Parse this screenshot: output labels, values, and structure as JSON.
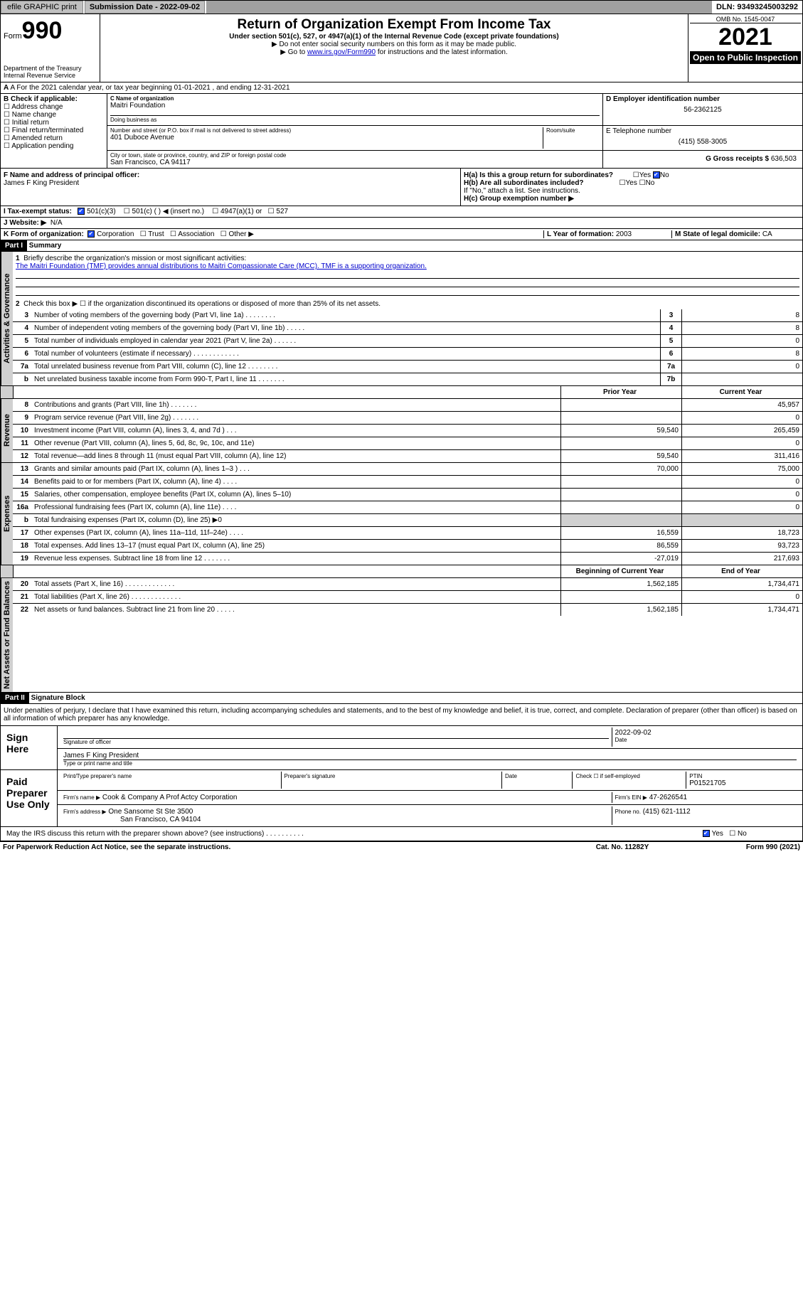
{
  "topbar": {
    "efile": "efile GRAPHIC print",
    "subdate_label": "Submission Date - 2022-09-02",
    "dln": "DLN: 93493245003292"
  },
  "header": {
    "form_label": "Form",
    "form_num": "990",
    "dept": "Department of the Treasury\nInternal Revenue Service",
    "title": "Return of Organization Exempt From Income Tax",
    "sub1": "Under section 501(c), 527, or 4947(a)(1) of the Internal Revenue Code (except private foundations)",
    "sub2a": "▶ Do not enter social security numbers on this form as it may be made public.",
    "sub2b_pre": "▶ Go to ",
    "sub2b_link": "www.irs.gov/Form990",
    "sub2b_post": " for instructions and the latest information.",
    "omb": "OMB No. 1545-0047",
    "year": "2021",
    "inspect": "Open to Public Inspection"
  },
  "row_a": "A For the 2021 calendar year, or tax year beginning 01-01-2021     , and ending 12-31-2021",
  "b": {
    "label": "B Check if applicable:",
    "items": [
      "Address change",
      "Name change",
      "Initial return",
      "Final return/terminated",
      "Amended return",
      "Application pending"
    ]
  },
  "c": {
    "name_label": "C Name of organization",
    "name": "Maitri Foundation",
    "dba_label": "Doing business as",
    "dba": "",
    "addr_label": "Number and street (or P.O. box if mail is not delivered to street address)",
    "room_label": "Room/suite",
    "addr": "401 Duboce Avenue",
    "city_label": "City or town, state or province, country, and ZIP or foreign postal code",
    "city": "San Francisco, CA  94117"
  },
  "d": {
    "label": "D Employer identification number",
    "val": "56-2362125"
  },
  "e": {
    "label": "E Telephone number",
    "val": "(415) 558-3005"
  },
  "g": {
    "label": "G Gross receipts $",
    "val": "636,503"
  },
  "f": {
    "label": "F Name and address of principal officer:",
    "val": "James F King President"
  },
  "h": {
    "a": "H(a)  Is this a group return for subordinates?",
    "b": "H(b)  Are all subordinates included?",
    "b_note": "If \"No,\" attach a list. See instructions.",
    "c": "H(c)  Group exemption number ▶"
  },
  "i": {
    "label": "I   Tax-exempt status:",
    "opts": [
      "501(c)(3)",
      "501(c) (  ) ◀ (insert no.)",
      "4947(a)(1) or",
      "527"
    ]
  },
  "j": {
    "label": "J   Website: ▶",
    "val": "N/A"
  },
  "k": {
    "label": "K Form of organization:",
    "opts": [
      "Corporation",
      "Trust",
      "Association",
      "Other ▶"
    ]
  },
  "l": {
    "label": "L Year of formation:",
    "val": "2003"
  },
  "m": {
    "label": "M State of legal domicile:",
    "val": "CA"
  },
  "part1": {
    "hdr": "Part I",
    "title": "Summary",
    "line1_label": "Briefly describe the organization's mission or most significant activities:",
    "mission": "The Maitri Foundation (TMF) provides annual distributions to Maitri Compassionate Care (MCC). TMF is a supporting organization.",
    "line2": "Check this box ▶ ☐  if the organization discontinued its operations or disposed of more than 25% of its net assets.",
    "sidebars": {
      "gov": "Activities & Governance",
      "rev": "Revenue",
      "exp": "Expenses",
      "net": "Net Assets or Fund Balances"
    },
    "gov_lines": [
      {
        "n": "3",
        "t": "Number of voting members of the governing body (Part VI, line 1a)  .    .    .    .    .    .    .    .",
        "box": "3",
        "v": "8"
      },
      {
        "n": "4",
        "t": "Number of independent voting members of the governing body (Part VI, line 1b)   .    .    .    .    .",
        "box": "4",
        "v": "8"
      },
      {
        "n": "5",
        "t": "Total number of individuals employed in calendar year 2021 (Part V, line 2a)   .    .    .    .    .    .",
        "box": "5",
        "v": "0"
      },
      {
        "n": "6",
        "t": "Total number of volunteers (estimate if necessary)  .    .    .    .    .    .    .    .    .    .    .    .",
        "box": "6",
        "v": "8"
      },
      {
        "n": "7a",
        "t": "Total unrelated business revenue from Part VIII, column (C), line 12  .    .    .    .    .    .    .    .",
        "box": "7a",
        "v": "0"
      },
      {
        "n": "b",
        "t": "Net unrelated business taxable income from Form 990-T, Part I, line 11  .    .    .    .    .    .    .",
        "box": "7b",
        "v": ""
      }
    ],
    "col_hdr": {
      "prior": "Prior Year",
      "current": "Current Year"
    },
    "rev_lines": [
      {
        "n": "8",
        "t": "Contributions and grants (Part VIII, line 1h)   .    .    .    .    .    .    .",
        "p": "",
        "c": "45,957"
      },
      {
        "n": "9",
        "t": "Program service revenue (Part VIII, line 2g)   .    .    .    .    .    .    .",
        "p": "",
        "c": "0"
      },
      {
        "n": "10",
        "t": "Investment income (Part VIII, column (A), lines 3, 4, and 7d )   .    .    .",
        "p": "59,540",
        "c": "265,459"
      },
      {
        "n": "11",
        "t": "Other revenue (Part VIII, column (A), lines 5, 6d, 8c, 9c, 10c, and 11e)",
        "p": "",
        "c": "0"
      },
      {
        "n": "12",
        "t": "Total revenue—add lines 8 through 11 (must equal Part VIII, column (A), line 12)",
        "p": "59,540",
        "c": "311,416"
      }
    ],
    "exp_lines": [
      {
        "n": "13",
        "t": "Grants and similar amounts paid (Part IX, column (A), lines 1–3 )   .    .    .",
        "p": "70,000",
        "c": "75,000"
      },
      {
        "n": "14",
        "t": "Benefits paid to or for members (Part IX, column (A), line 4)   .    .    .    .",
        "p": "",
        "c": "0"
      },
      {
        "n": "15",
        "t": "Salaries, other compensation, employee benefits (Part IX, column (A), lines 5–10)",
        "p": "",
        "c": "0"
      },
      {
        "n": "16a",
        "t": "Professional fundraising fees (Part IX, column (A), line 11e)   .    .    .    .",
        "p": "",
        "c": "0"
      },
      {
        "n": "b",
        "t": "Total fundraising expenses (Part IX, column (D), line 25) ▶0",
        "p": "grey",
        "c": "grey"
      },
      {
        "n": "17",
        "t": "Other expenses (Part IX, column (A), lines 11a–11d, 11f–24e)   .    .    .    .",
        "p": "16,559",
        "c": "18,723"
      },
      {
        "n": "18",
        "t": "Total expenses. Add lines 13–17 (must equal Part IX, column (A), line 25)",
        "p": "86,559",
        "c": "93,723"
      },
      {
        "n": "19",
        "t": "Revenue less expenses. Subtract line 18 from line 12  .    .    .    .    .    .    .",
        "p": "-27,019",
        "c": "217,693"
      }
    ],
    "net_hdr": {
      "begin": "Beginning of Current Year",
      "end": "End of Year"
    },
    "net_lines": [
      {
        "n": "20",
        "t": "Total assets (Part X, line 16)   .    .    .    .    .    .    .    .    .    .    .    .    .",
        "p": "1,562,185",
        "c": "1,734,471"
      },
      {
        "n": "21",
        "t": "Total liabilities (Part X, line 26)   .    .    .    .    .    .    .    .    .    .    .    .    .",
        "p": "",
        "c": "0"
      },
      {
        "n": "22",
        "t": "Net assets or fund balances. Subtract line 21 from line 20   .    .    .    .    .",
        "p": "1,562,185",
        "c": "1,734,471"
      }
    ]
  },
  "part2": {
    "hdr": "Part II",
    "title": "Signature Block",
    "decl": "Under penalties of perjury, I declare that I have examined this return, including accompanying schedules and statements, and to the best of my knowledge and belief, it is true, correct, and complete. Declaration of preparer (other than officer) is based on all information of which preparer has any knowledge.",
    "sign_here": "Sign Here",
    "sig_officer": "Signature of officer",
    "sig_date_label": "Date",
    "sig_date": "2022-09-02",
    "sig_name": "James F King President",
    "sig_name_label": "Type or print name and title",
    "paid": "Paid Preparer Use Only",
    "prep_name_label": "Print/Type preparer's name",
    "prep_sig_label": "Preparer's signature",
    "date_label": "Date",
    "check_se": "Check ☐ if self-employed",
    "ptin_label": "PTIN",
    "ptin": "P01521705",
    "firm_name_label": "Firm's name      ▶",
    "firm_name": "Cook & Company A Prof Actcy Corporation",
    "firm_ein_label": "Firm's EIN ▶",
    "firm_ein": "47-2626541",
    "firm_addr_label": "Firm's address ▶",
    "firm_addr1": "One Sansome St Ste 3500",
    "firm_addr2": "San Francisco, CA  94104",
    "phone_label": "Phone no.",
    "phone": "(415) 621-1112",
    "may_irs": "May the IRS discuss this return with the preparer shown above? (see instructions)   .    .    .    .    .    .    .    .    .    .",
    "yes": "Yes",
    "no": "No"
  },
  "footer": {
    "left": "For Paperwork Reduction Act Notice, see the separate instructions.",
    "mid": "Cat. No. 11282Y",
    "right": "Form 990 (2021)"
  }
}
